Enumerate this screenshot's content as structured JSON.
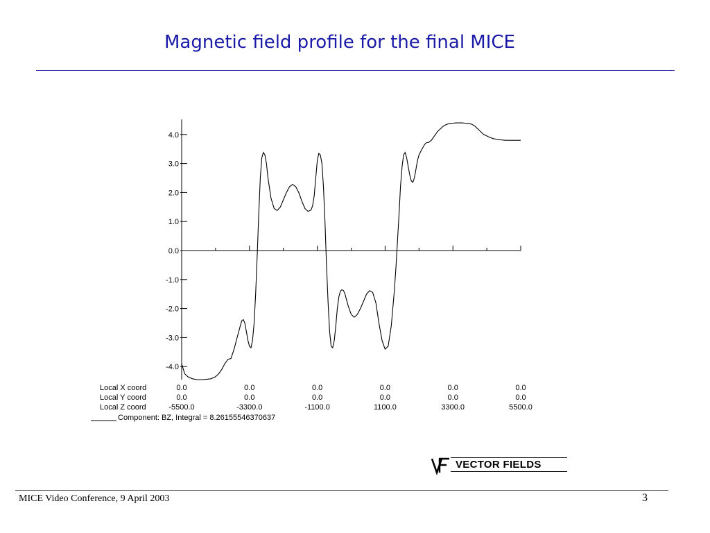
{
  "slide": {
    "title": "Magnetic field profile for the final MICE",
    "footer": "MICE Video Conference, 9 April 2003",
    "page_number": "3"
  },
  "logo": {
    "mark": "VF",
    "text": "VECTOR FIELDS"
  },
  "colors": {
    "title": "#1a1aa8",
    "rule": "#2b2bb0",
    "curve": "#000000"
  },
  "chart_data": {
    "type": "line",
    "title": "",
    "ylim": [
      -4.4,
      4.4
    ],
    "xlim": [
      -5500,
      5500
    ],
    "yticks": [
      "4.0",
      "3.0",
      "2.0",
      "1.0",
      "0.0",
      "-1.0",
      "-2.0",
      "-3.0",
      "-4.0"
    ],
    "ytick_values": [
      4,
      3,
      2,
      1,
      0,
      -1,
      -2,
      -3,
      -4
    ],
    "xtick_values": [
      -5500,
      -3300,
      -1100,
      1100,
      3300,
      5500
    ],
    "coord_rows": [
      {
        "label": "Local X coord",
        "values": [
          "0.0",
          "0.0",
          "0.0",
          "0.0",
          "0.0",
          "0.0"
        ]
      },
      {
        "label": "Local Y coord",
        "values": [
          "0.0",
          "0.0",
          "0.0",
          "0.0",
          "0.0",
          "0.0"
        ]
      },
      {
        "label": "Local Z coord",
        "values": [
          "-5500.0",
          "-3300.0",
          "-1100.0",
          "1100.0",
          "3300.0",
          "5500.0"
        ]
      }
    ],
    "legend": "Component:   BZ, Integral = 8.26155546370637",
    "series": [
      {
        "x": [
          -5500,
          -5400,
          -5300,
          -5150,
          -5000,
          -4850,
          -4700,
          -4550,
          -4400,
          -4300,
          -4200,
          -4100,
          -4000,
          -3900,
          -3800,
          -3700,
          -3600,
          -3550,
          -3500,
          -3450,
          -3400,
          -3350,
          -3300,
          -3250,
          -3200,
          -3150,
          -3100,
          -3050,
          -3000,
          -2950,
          -2900,
          -2850,
          -2800,
          -2750,
          -2700,
          -2600,
          -2500,
          -2400,
          -2300,
          -2200,
          -2100,
          -2000,
          -1900,
          -1800,
          -1700,
          -1600,
          -1500,
          -1400,
          -1300,
          -1250,
          -1200,
          -1150,
          -1100,
          -1050,
          -1000,
          -950,
          -900,
          -850,
          -800,
          -750,
          -700,
          -650,
          -600,
          -550,
          -500,
          -450,
          -400,
          -350,
          -300,
          -250,
          -200,
          -150,
          -100,
          -50,
          0,
          100,
          200,
          300,
          400,
          500,
          600,
          700,
          800,
          900,
          1000,
          1100,
          1200,
          1300,
          1400,
          1450,
          1500,
          1550,
          1600,
          1650,
          1700,
          1750,
          1800,
          1850,
          1900,
          1950,
          2000,
          2050,
          2100,
          2150,
          2200,
          2250,
          2300,
          2350,
          2400,
          2450,
          2500,
          2600,
          2700,
          2800,
          2900,
          3000,
          3100,
          3200,
          3300,
          3400,
          3500,
          3600,
          3700,
          3800,
          3900,
          4000,
          4100,
          4200,
          4300,
          4400,
          4500,
          4600,
          4700,
          4800,
          4900,
          5000,
          5100,
          5200,
          5300,
          5400,
          5500
        ],
        "values": [
          -3.9,
          -4.25,
          -4.35,
          -4.42,
          -4.45,
          -4.45,
          -4.44,
          -4.42,
          -4.35,
          -4.25,
          -4.1,
          -3.9,
          -3.75,
          -3.72,
          -3.4,
          -3.0,
          -2.6,
          -2.42,
          -2.38,
          -2.5,
          -2.8,
          -3.1,
          -3.3,
          -3.35,
          -3.1,
          -2.5,
          -1.5,
          -0.2,
          1.2,
          2.5,
          3.2,
          3.38,
          3.3,
          3.0,
          2.5,
          1.8,
          1.45,
          1.38,
          1.5,
          1.75,
          2.0,
          2.2,
          2.28,
          2.2,
          2.0,
          1.7,
          1.45,
          1.35,
          1.4,
          1.55,
          1.9,
          2.5,
          3.1,
          3.35,
          3.3,
          3.0,
          2.2,
          1.0,
          -0.5,
          -1.8,
          -2.8,
          -3.3,
          -3.35,
          -3.1,
          -2.6,
          -2.0,
          -1.6,
          -1.4,
          -1.35,
          -1.38,
          -1.5,
          -1.7,
          -1.9,
          -2.05,
          -2.2,
          -2.3,
          -2.2,
          -2.0,
          -1.75,
          -1.5,
          -1.38,
          -1.45,
          -1.8,
          -2.5,
          -3.1,
          -3.4,
          -3.3,
          -2.6,
          -1.4,
          -0.6,
          0.3,
          1.2,
          2.2,
          2.9,
          3.3,
          3.38,
          3.2,
          2.9,
          2.6,
          2.4,
          2.35,
          2.5,
          2.8,
          3.1,
          3.3,
          3.4,
          3.5,
          3.6,
          3.68,
          3.72,
          3.72,
          3.8,
          3.95,
          4.1,
          4.2,
          4.3,
          4.35,
          4.38,
          4.39,
          4.4,
          4.4,
          4.4,
          4.39,
          4.38,
          4.36,
          4.3,
          4.2,
          4.1,
          4.0,
          3.95,
          3.9,
          3.86,
          3.84,
          3.82,
          3.81,
          3.8,
          3.8,
          3.8,
          3.8,
          3.8,
          3.8
        ]
      }
    ]
  }
}
